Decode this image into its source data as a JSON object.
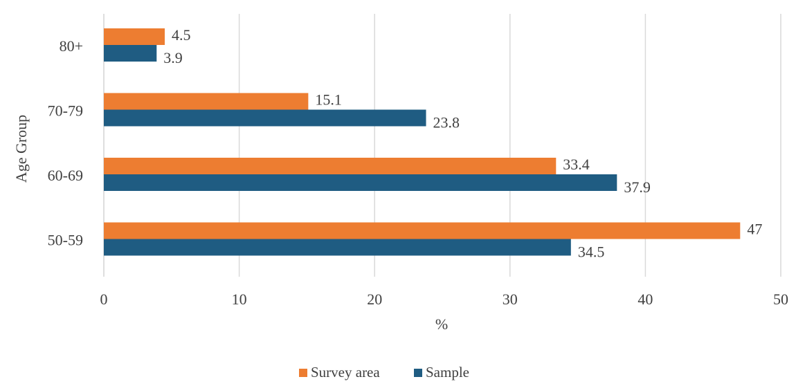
{
  "chart_data": {
    "type": "bar",
    "orientation": "horizontal",
    "categories": [
      "80+",
      "70-79",
      "60-69",
      "50-59"
    ],
    "series": [
      {
        "name": "Survey area",
        "color": "#ED7D31",
        "values": [
          4.5,
          15.1,
          33.4,
          47
        ]
      },
      {
        "name": "Sample",
        "color": "#1F5C82",
        "values": [
          3.9,
          23.8,
          37.9,
          34.5
        ]
      }
    ],
    "xlabel": "%",
    "ylabel": "Age Group",
    "xlim": [
      0,
      50
    ],
    "xticks": [
      0,
      10,
      20,
      30,
      40,
      50
    ],
    "grid": true,
    "legend_position": "bottom"
  }
}
